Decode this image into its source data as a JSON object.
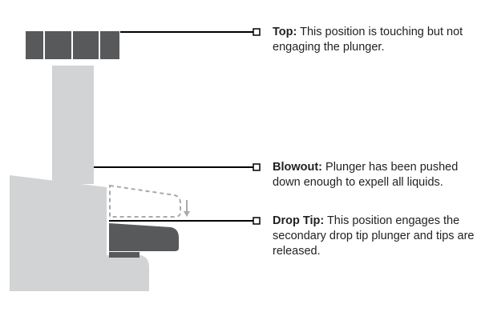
{
  "colors": {
    "plunger_cap": "#58595b",
    "plunger_body": "#d1d3d4",
    "line": "#000000",
    "dashed_outline": "#a7a9ac",
    "text": "#231f20"
  },
  "callouts": {
    "top": {
      "label": "Top:",
      "text": " This position is touching but not engaging the plunger."
    },
    "blowout": {
      "label": "Blowout:",
      "text": " Plunger has been pushed down enough to expell all liquids."
    },
    "drop_tip": {
      "label": "Drop Tip:",
      "text": " This position engages the secondary drop tip plunger and tips are released."
    }
  }
}
